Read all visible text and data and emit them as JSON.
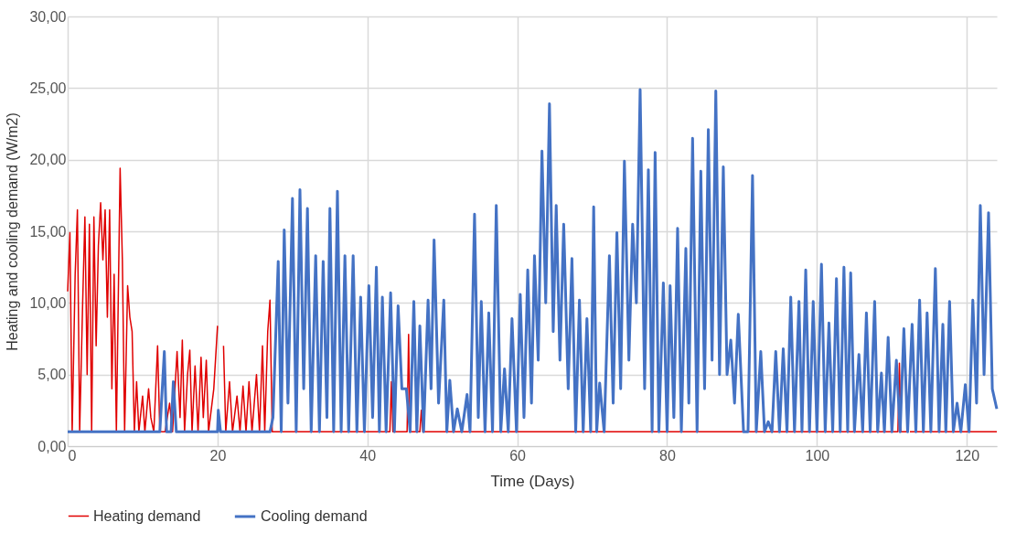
{
  "chart_data": {
    "type": "line",
    "xlabel": "Time (Days)",
    "ylabel": "Heating and cooling demand (W/m2)",
    "xlim": [
      0,
      124
    ],
    "xticks": [
      0,
      20,
      40,
      60,
      80,
      100,
      120
    ],
    "ylim": [
      0,
      30
    ],
    "yticks": [
      {
        "value": 0,
        "label": "0,00"
      },
      {
        "value": 5,
        "label": "5,00"
      },
      {
        "value": 10,
        "label": "10,00"
      },
      {
        "value": 15,
        "label": "15,00"
      },
      {
        "value": 20,
        "label": "20,00"
      },
      {
        "value": 25,
        "label": "25,00"
      },
      {
        "value": 30,
        "label": "30,00"
      }
    ],
    "grid": true,
    "legend": "bottom",
    "marker": "none",
    "line_style": "solid",
    "series": [
      {
        "name": "Heating demand",
        "color": "#e00000",
        "x": [
          0,
          0.3,
          0.6,
          1.0,
          1.3,
          1.6,
          2.0,
          2.3,
          2.6,
          2.9,
          3.2,
          3.5,
          3.8,
          4.1,
          4.4,
          4.7,
          5.0,
          5.3,
          5.6,
          5.9,
          6.2,
          6.5,
          7.0,
          7.3,
          7.6,
          8.0,
          8.3,
          8.6,
          8.9,
          9.2,
          9.5,
          10.0,
          10.3,
          10.8,
          11.1,
          11.5,
          12.0,
          12.3,
          13.0,
          13.6,
          14.0,
          14.6,
          15.0,
          15.3,
          15.6,
          16.0,
          16.3,
          16.6,
          17.0,
          17.4,
          17.8,
          18.1,
          18.5,
          18.8,
          19.5,
          20.0,
          20.3,
          20.8,
          21.1,
          21.6,
          22.0,
          22.6,
          23.0,
          23.4,
          23.8,
          24.2,
          24.6,
          25.2,
          25.6,
          26.0,
          26.3,
          26.7,
          27.0,
          27.3,
          28,
          43.0,
          43.2,
          43.4,
          45.3,
          45.5,
          45.7,
          47.0,
          47.2,
          47.4,
          110.8,
          111.0,
          111.2,
          112.0,
          112.2,
          112.4,
          124
        ],
        "values": [
          10.8,
          14.9,
          1,
          12,
          16.5,
          1,
          10,
          16,
          5,
          15.5,
          1,
          16,
          7,
          14,
          17,
          13,
          16.5,
          9,
          16.5,
          4,
          12,
          1,
          19.4,
          13,
          1,
          11.2,
          9,
          8,
          1,
          4.5,
          1,
          3.5,
          1,
          4.0,
          2,
          1,
          7.0,
          1,
          1,
          3.0,
          1,
          6.6,
          2,
          7.4,
          1,
          5,
          6.7,
          1,
          5.6,
          1,
          6.2,
          2,
          6,
          1,
          4,
          8.4,
          null,
          7,
          1,
          4.5,
          1,
          3.5,
          1,
          4.2,
          1,
          4.5,
          1,
          5,
          1,
          7,
          1,
          8,
          10.2,
          1,
          1,
          1,
          4.5,
          1,
          1,
          7.8,
          1,
          1,
          2.5,
          1,
          1,
          5.8,
          1,
          1,
          null,
          1,
          1
        ]
      },
      {
        "name": "Cooling demand",
        "color": "#4472c4",
        "x": [
          0,
          12.3,
          12.9,
          13.2,
          13.8,
          14.1,
          14.5,
          20.0,
          20.1,
          20.4,
          27.0,
          27.4,
          28.1,
          28.5,
          28.9,
          29.4,
          30.0,
          30.5,
          31.0,
          31.5,
          32.0,
          32.5,
          33.1,
          33.6,
          34.1,
          34.6,
          35.0,
          35.5,
          36.0,
          36.5,
          37.0,
          37.5,
          38.1,
          38.6,
          39.1,
          39.6,
          40.2,
          40.7,
          41.2,
          41.6,
          42.0,
          42.5,
          43.1,
          43.6,
          44.1,
          44.6,
          45.2,
          45.7,
          46.2,
          46.6,
          47.0,
          47.5,
          48.1,
          48.5,
          48.9,
          49.5,
          50.2,
          50.6,
          51.0,
          51.5,
          52.0,
          52.6,
          53.3,
          53.7,
          54.3,
          54.8,
          55.2,
          55.7,
          56.2,
          56.7,
          57.2,
          57.8,
          58.3,
          58.8,
          59.3,
          59.9,
          60.4,
          60.9,
          61.4,
          61.9,
          62.3,
          62.8,
          63.3,
          63.8,
          64.3,
          64.8,
          65.2,
          65.7,
          66.2,
          66.8,
          67.3,
          67.8,
          68.3,
          68.8,
          69.3,
          69.8,
          70.2,
          70.6,
          71.0,
          71.6,
          72.3,
          72.8,
          73.3,
          73.8,
          74.3,
          74.9,
          75.4,
          75.9,
          76.4,
          77.0,
          77.5,
          78.0,
          78.4,
          78.9,
          79.5,
          80.0,
          80.4,
          80.9,
          81.4,
          81.9,
          82.5,
          82.9,
          83.4,
          84.0,
          84.5,
          85.0,
          85.5,
          86.0,
          86.5,
          87.0,
          87.5,
          88.0,
          88.5,
          89.0,
          89.5,
          90.2,
          90.8,
          91.4,
          91.9,
          92.5,
          93.0,
          93.5,
          94.0,
          94.5,
          95.0,
          95.5,
          96.0,
          96.5,
          97.0,
          97.6,
          98.0,
          98.5,
          99.0,
          99.5,
          100.0,
          100.6,
          101.1,
          101.6,
          102.1,
          102.6,
          103.1,
          103.6,
          104.1,
          104.5,
          105.0,
          105.6,
          106.1,
          106.6,
          107.1,
          107.7,
          108.1,
          108.6,
          109.0,
          109.5,
          110.0,
          110.6,
          111.1,
          111.6,
          112.1,
          112.7,
          113.2,
          113.7,
          114.2,
          114.7,
          115.2,
          115.8,
          116.3,
          116.8,
          117.2,
          117.7,
          118.2,
          118.7,
          119.2,
          119.8,
          120.3,
          120.8,
          121.3,
          121.8,
          122.3,
          122.9,
          123.4,
          124.0
        ],
        "values": [
          1,
          1,
          6.6,
          1,
          1,
          4.5,
          1,
          1,
          2.5,
          1,
          1,
          2,
          12.9,
          1,
          15.1,
          3,
          17.3,
          1,
          17.9,
          4,
          16.6,
          1,
          13.3,
          1,
          12.9,
          2,
          16.6,
          1,
          17.8,
          1,
          13.3,
          1,
          13.3,
          1,
          10.4,
          1,
          11.2,
          2,
          12.5,
          1,
          10.4,
          1,
          10.7,
          1,
          9.8,
          4,
          4.0,
          1,
          10.1,
          1,
          8.4,
          1,
          10.2,
          4,
          14.4,
          3,
          10.2,
          1,
          4.6,
          1,
          2.6,
          1,
          3.6,
          1,
          16.2,
          2,
          10.1,
          1,
          9.3,
          1,
          16.8,
          1,
          5.4,
          1,
          8.9,
          1,
          10.6,
          2,
          12.3,
          3,
          13.3,
          6,
          20.6,
          10,
          23.9,
          8,
          16.8,
          6,
          15.5,
          4,
          13.1,
          1,
          10.2,
          1,
          8.9,
          1,
          16.7,
          1,
          4.4,
          1,
          13.3,
          3,
          14.9,
          4,
          19.9,
          6,
          15.5,
          10,
          24.9,
          4,
          19.3,
          1,
          20.5,
          1,
          11.4,
          1,
          11.2,
          2,
          15.2,
          1,
          13.8,
          3,
          21.5,
          1,
          19.2,
          4,
          22.1,
          6,
          24.8,
          5,
          19.5,
          5,
          7.4,
          3,
          9.2,
          1,
          1,
          18.9,
          1,
          6.6,
          1,
          1.7,
          1,
          6.6,
          1,
          6.8,
          1,
          10.4,
          1,
          10.1,
          1,
          12.3,
          1,
          10.1,
          1,
          12.7,
          1,
          8.6,
          1,
          11.7,
          1,
          12.5,
          1,
          12.1,
          1,
          6.4,
          1,
          9.3,
          1,
          10.1,
          1,
          5.1,
          1,
          7.6,
          1,
          6.0,
          1,
          8.2,
          1,
          8.5,
          1,
          10.2,
          1,
          9.3,
          1,
          12.4,
          1,
          8.5,
          1,
          10.1,
          1,
          3.0,
          1,
          4.3,
          1,
          10.2,
          3,
          16.8,
          5,
          16.3,
          4,
          2.6
        ]
      }
    ]
  }
}
